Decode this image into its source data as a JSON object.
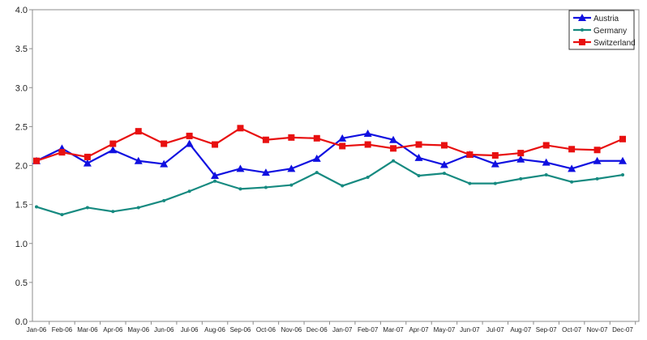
{
  "chart_data": {
    "type": "line",
    "title": "",
    "xlabel": "",
    "ylabel": "",
    "ylim": [
      0,
      4.0
    ],
    "yticks": [
      "0.0",
      "0.5",
      "1.0",
      "1.5",
      "2.0",
      "2.5",
      "3.0",
      "3.5",
      "4.0"
    ],
    "grid": false,
    "legend_position": "top-right",
    "categories": [
      "Jan-06",
      "Feb-06",
      "Mar-06",
      "Apr-06",
      "May-06",
      "Jun-06",
      "Jul-06",
      "Aug-06",
      "Sep-06",
      "Oct-06",
      "Nov-06",
      "Dec-06",
      "Jan-07",
      "Feb-07",
      "Mar-07",
      "Apr-07",
      "May-07",
      "Jun-07",
      "Jul-07",
      "Aug-07",
      "Sep-07",
      "Oct-07",
      "Nov-07",
      "Dec-07"
    ],
    "series": [
      {
        "name": "Austria",
        "color": "#1010e0",
        "marker": "triangle",
        "values": [
          2.06,
          2.22,
          2.03,
          2.2,
          2.06,
          2.02,
          2.28,
          1.87,
          1.96,
          1.91,
          1.96,
          2.09,
          2.35,
          2.41,
          2.33,
          2.1,
          2.01,
          2.14,
          2.02,
          2.08,
          2.04,
          1.96,
          2.06,
          2.06
        ]
      },
      {
        "name": "Germany",
        "color": "#168a80",
        "marker": "dot",
        "values": [
          1.47,
          1.37,
          1.46,
          1.41,
          1.46,
          1.55,
          1.67,
          1.8,
          1.7,
          1.72,
          1.75,
          1.91,
          1.74,
          1.85,
          2.06,
          1.87,
          1.9,
          1.77,
          1.77,
          1.83,
          1.88,
          1.79,
          1.83,
          1.88
        ]
      },
      {
        "name": "Switzerland",
        "color": "#e81010",
        "marker": "square",
        "values": [
          2.06,
          2.17,
          2.11,
          2.28,
          2.44,
          2.28,
          2.38,
          2.27,
          2.48,
          2.33,
          2.36,
          2.35,
          2.25,
          2.27,
          2.22,
          2.27,
          2.26,
          2.14,
          2.13,
          2.16,
          2.26,
          2.21,
          2.2,
          2.34
        ]
      }
    ]
  }
}
